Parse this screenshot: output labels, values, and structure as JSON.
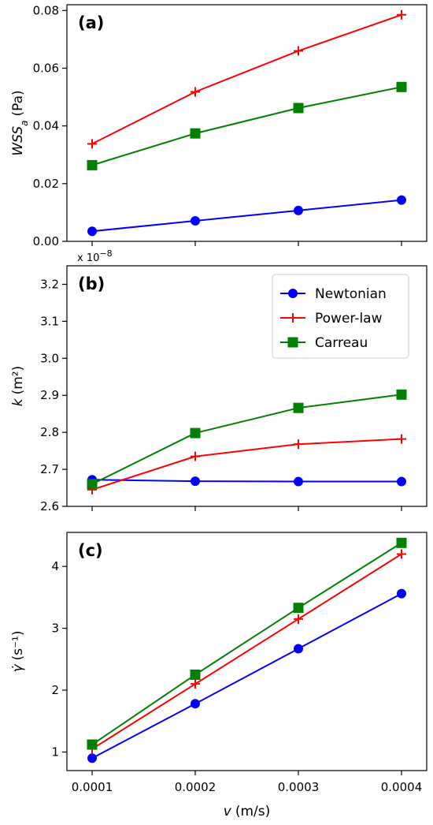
{
  "chart_data": [
    {
      "type": "line",
      "panel_label": "(a)",
      "ylabel": "WSS",
      "ylabel_subscript": "a",
      "ylabel_unit": "(Pa)",
      "x": [
        0.0001,
        0.0002,
        0.0003,
        0.0004
      ],
      "xticks": [
        "0.0001",
        "0.0002",
        "0.0003",
        "0.0004"
      ],
      "ylim": [
        0.0,
        0.082
      ],
      "yticks": [
        0.0,
        0.02,
        0.04,
        0.06,
        0.08
      ],
      "ytick_labels": [
        "0.00",
        "0.02",
        "0.04",
        "0.06",
        "0.08"
      ],
      "series": [
        {
          "name": "Newtonian",
          "color": "#0000ff",
          "marker": "circle",
          "values": [
            0.0035,
            0.0071,
            0.0107,
            0.0143
          ]
        },
        {
          "name": "Power-law",
          "color": "#ff0000",
          "marker": "plus",
          "values": [
            0.0338,
            0.0518,
            0.066,
            0.0785
          ]
        },
        {
          "name": "Carreau",
          "color": "#008000",
          "marker": "square",
          "values": [
            0.0264,
            0.0374,
            0.0462,
            0.0535
          ]
        }
      ]
    },
    {
      "type": "line",
      "panel_label": "(b)",
      "ylabel": "k",
      "ylabel_unit": "(m²)",
      "offset_text": "x 10",
      "offset_exponent": "−8",
      "x": [
        0.0001,
        0.0002,
        0.0003,
        0.0004
      ],
      "xticks": [
        "0.0001",
        "0.0002",
        "0.0003",
        "0.0004"
      ],
      "ylim": [
        2.6,
        3.25
      ],
      "yticks": [
        2.6,
        2.7,
        2.8,
        2.9,
        3.0,
        3.1,
        3.2
      ],
      "ytick_labels": [
        "2.6",
        "2.7",
        "2.8",
        "2.9",
        "3.0",
        "3.1",
        "3.2"
      ],
      "legend": {
        "position": "upper-right",
        "entries": [
          "Newtonian",
          "Power-law",
          "Carreau"
        ]
      },
      "series": [
        {
          "name": "Newtonian",
          "color": "#0000ff",
          "marker": "circle",
          "values": [
            2.672,
            2.668,
            2.667,
            2.667
          ]
        },
        {
          "name": "Power-law",
          "color": "#ff0000",
          "marker": "plus",
          "values": [
            2.645,
            2.735,
            2.768,
            2.782
          ]
        },
        {
          "name": "Carreau",
          "color": "#008000",
          "marker": "square",
          "values": [
            2.66,
            2.798,
            2.866,
            2.902
          ]
        }
      ]
    },
    {
      "type": "line",
      "panel_label": "(c)",
      "ylabel": "γ̇",
      "ylabel_unit": "(s⁻¹)",
      "xlabel": "v",
      "xlabel_unit": "(m/s)",
      "x": [
        0.0001,
        0.0002,
        0.0003,
        0.0004
      ],
      "xticks": [
        "0.0001",
        "0.0002",
        "0.0003",
        "0.0004"
      ],
      "ylim": [
        0.7,
        4.55
      ],
      "yticks": [
        1,
        2,
        3,
        4
      ],
      "ytick_labels": [
        "1",
        "2",
        "3",
        "4"
      ],
      "series": [
        {
          "name": "Newtonian",
          "color": "#0000ff",
          "marker": "circle",
          "values": [
            0.9,
            1.78,
            2.67,
            3.56
          ]
        },
        {
          "name": "Power-law",
          "color": "#ff0000",
          "marker": "plus",
          "values": [
            1.05,
            2.1,
            3.15,
            4.2
          ]
        },
        {
          "name": "Carreau",
          "color": "#008000",
          "marker": "square",
          "values": [
            1.12,
            2.25,
            3.33,
            4.38
          ]
        }
      ]
    }
  ]
}
